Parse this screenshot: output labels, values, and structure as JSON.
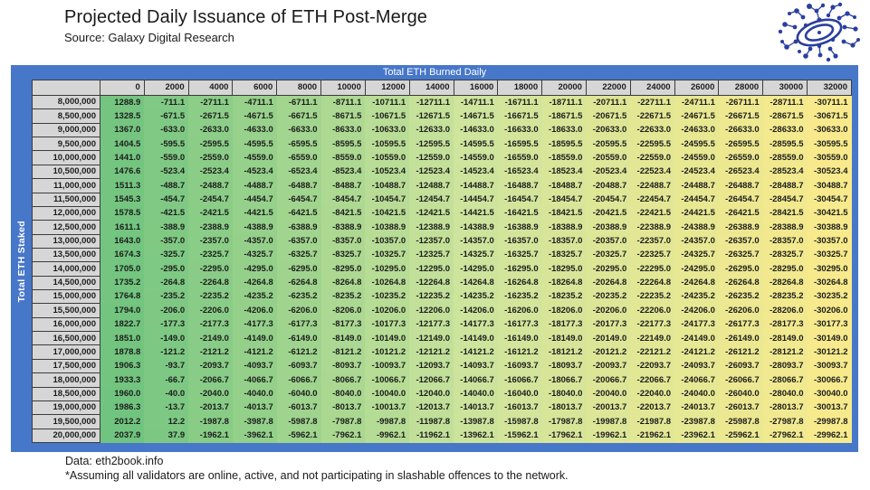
{
  "header": {
    "title": "Projected Daily Issuance of ETH Post-Merge",
    "subtitle": "Source: Galaxy Digital Research"
  },
  "logo": {
    "name": "galaxy-digital-network-logo",
    "color": "#2b3f9e"
  },
  "table": {
    "col_axis_label": "Total ETH Burned Daily",
    "row_axis_label": "Total ETH Staked",
    "col_headers": [
      "0",
      "2000",
      "4000",
      "6000",
      "8000",
      "10000",
      "12000",
      "14000",
      "16000",
      "18000",
      "20000",
      "22000",
      "24000",
      "26000",
      "28000",
      "30000",
      "32000"
    ],
    "row_headers": [
      "8,000,000",
      "8,500,000",
      "9,000,000",
      "9,500,000",
      "10,000,000",
      "10,500,000",
      "11,000,000",
      "11,500,000",
      "12,000,000",
      "12,500,000",
      "13,000,000",
      "13,500,000",
      "14,000,000",
      "14,500,000",
      "15,000,000",
      "15,500,000",
      "16,000,000",
      "16,500,000",
      "17,000,000",
      "17,500,000",
      "18,000,000",
      "18,500,000",
      "19,000,000",
      "19,500,000",
      "20,000,000"
    ]
  },
  "colors": {
    "frame_blue": "#4777c9",
    "header_gray": "#d6d6d6",
    "grid_border": "#3c3c3c",
    "text_dark": "#1c1c1c",
    "logo_blue": "#2b3f9e"
  },
  "chart_data": {
    "type": "heatmap",
    "title": "Projected Daily Issuance of ETH Post-Merge",
    "source": "Galaxy Digital Research",
    "xlabel": "Total ETH Burned Daily",
    "ylabel": "Total ETH Staked",
    "x": [
      0,
      2000,
      4000,
      6000,
      8000,
      10000,
      12000,
      14000,
      16000,
      18000,
      20000,
      22000,
      24000,
      26000,
      28000,
      30000,
      32000
    ],
    "y": [
      8000000,
      8500000,
      9000000,
      9500000,
      10000000,
      10500000,
      11000000,
      11500000,
      12000000,
      12500000,
      13000000,
      13500000,
      14000000,
      14500000,
      15000000,
      15500000,
      16000000,
      16500000,
      17000000,
      17500000,
      18000000,
      18500000,
      19000000,
      19500000,
      20000000
    ],
    "rows": [
      [
        1288.9,
        -711.1,
        -2711.1,
        -4711.1,
        -6711.1,
        -8711.1,
        -10711.1,
        -12711.1,
        -14711.1,
        -16711.1,
        -18711.1,
        -20711.1,
        -22711.1,
        -24711.1,
        -26711.1,
        -28711.1,
        -30711.1
      ],
      [
        1328.5,
        -671.5,
        -2671.5,
        -4671.5,
        -6671.5,
        -8671.5,
        -10671.5,
        -12671.5,
        -14671.5,
        -16671.5,
        -18671.5,
        -20671.5,
        -22671.5,
        -24671.5,
        -26671.5,
        -28671.5,
        -30671.5
      ],
      [
        1367.0,
        -633.0,
        -2633.0,
        -4633.0,
        -6633.0,
        -8633.0,
        -10633.0,
        -12633.0,
        -14633.0,
        -16633.0,
        -18633.0,
        -20633.0,
        -22633.0,
        -24633.0,
        -26633.0,
        -28633.0,
        -30633.0
      ],
      [
        1404.5,
        -595.5,
        -2595.5,
        -4595.5,
        -6595.5,
        -8595.5,
        -10595.5,
        -12595.5,
        -14595.5,
        -16595.5,
        -18595.5,
        -20595.5,
        -22595.5,
        -24595.5,
        -26595.5,
        -28595.5,
        -30595.5
      ],
      [
        1441.0,
        -559.0,
        -2559.0,
        -4559.0,
        -6559.0,
        -8559.0,
        -10559.0,
        -12559.0,
        -14559.0,
        -16559.0,
        -18559.0,
        -20559.0,
        -22559.0,
        -24559.0,
        -26559.0,
        -28559.0,
        -30559.0
      ],
      [
        1476.6,
        -523.4,
        -2523.4,
        -4523.4,
        -6523.4,
        -8523.4,
        -10523.4,
        -12523.4,
        -14523.4,
        -16523.4,
        -18523.4,
        -20523.4,
        -22523.4,
        -24523.4,
        -26523.4,
        -28523.4,
        -30523.4
      ],
      [
        1511.3,
        -488.7,
        -2488.7,
        -4488.7,
        -6488.7,
        -8488.7,
        -10488.7,
        -12488.7,
        -14488.7,
        -16488.7,
        -18488.7,
        -20488.7,
        -22488.7,
        -24488.7,
        -26488.7,
        -28488.7,
        -30488.7
      ],
      [
        1545.3,
        -454.7,
        -2454.7,
        -4454.7,
        -6454.7,
        -8454.7,
        -10454.7,
        -12454.7,
        -14454.7,
        -16454.7,
        -18454.7,
        -20454.7,
        -22454.7,
        -24454.7,
        -26454.7,
        -28454.7,
        -30454.7
      ],
      [
        1578.5,
        -421.5,
        -2421.5,
        -4421.5,
        -6421.5,
        -8421.5,
        -10421.5,
        -12421.5,
        -14421.5,
        -16421.5,
        -18421.5,
        -20421.5,
        -22421.5,
        -24421.5,
        -26421.5,
        -28421.5,
        -30421.5
      ],
      [
        1611.1,
        -388.9,
        -2388.9,
        -4388.9,
        -6388.9,
        -8388.9,
        -10388.9,
        -12388.9,
        -14388.9,
        -16388.9,
        -18388.9,
        -20388.9,
        -22388.9,
        -24388.9,
        -26388.9,
        -28388.9,
        -30388.9
      ],
      [
        1643.0,
        -357.0,
        -2357.0,
        -4357.0,
        -6357.0,
        -8357.0,
        -10357.0,
        -12357.0,
        -14357.0,
        -16357.0,
        -18357.0,
        -20357.0,
        -22357.0,
        -24357.0,
        -26357.0,
        -28357.0,
        -30357.0
      ],
      [
        1674.3,
        -325.7,
        -2325.7,
        -4325.7,
        -6325.7,
        -8325.7,
        -10325.7,
        -12325.7,
        -14325.7,
        -16325.7,
        -18325.7,
        -20325.7,
        -22325.7,
        -24325.7,
        -26325.7,
        -28325.7,
        -30325.7
      ],
      [
        1705.0,
        -295.0,
        -2295.0,
        -4295.0,
        -6295.0,
        -8295.0,
        -10295.0,
        -12295.0,
        -14295.0,
        -16295.0,
        -18295.0,
        -20295.0,
        -22295.0,
        -24295.0,
        -26295.0,
        -28295.0,
        -30295.0
      ],
      [
        1735.2,
        -264.8,
        -2264.8,
        -4264.8,
        -6264.8,
        -8264.8,
        -10264.8,
        -12264.8,
        -14264.8,
        -16264.8,
        -18264.8,
        -20264.8,
        -22264.8,
        -24264.8,
        -26264.8,
        -28264.8,
        -30264.8
      ],
      [
        1764.8,
        -235.2,
        -2235.2,
        -4235.2,
        -6235.2,
        -8235.2,
        -10235.2,
        -12235.2,
        -14235.2,
        -16235.2,
        -18235.2,
        -20235.2,
        -22235.2,
        -24235.2,
        -26235.2,
        -28235.2,
        -30235.2
      ],
      [
        1794.0,
        -206.0,
        -2206.0,
        -4206.0,
        -6206.0,
        -8206.0,
        -10206.0,
        -12206.0,
        -14206.0,
        -16206.0,
        -18206.0,
        -20206.0,
        -22206.0,
        -24206.0,
        -26206.0,
        -28206.0,
        -30206.0
      ],
      [
        1822.7,
        -177.3,
        -2177.3,
        -4177.3,
        -6177.3,
        -8177.3,
        -10177.3,
        -12177.3,
        -14177.3,
        -16177.3,
        -18177.3,
        -20177.3,
        -22177.3,
        -24177.3,
        -26177.3,
        -28177.3,
        -30177.3
      ],
      [
        1851.0,
        -149.0,
        -2149.0,
        -4149.0,
        -6149.0,
        -8149.0,
        -10149.0,
        -12149.0,
        -14149.0,
        -16149.0,
        -18149.0,
        -20149.0,
        -22149.0,
        -24149.0,
        -26149.0,
        -28149.0,
        -30149.0
      ],
      [
        1878.8,
        -121.2,
        -2121.2,
        -4121.2,
        -6121.2,
        -8121.2,
        -10121.2,
        -12121.2,
        -14121.2,
        -16121.2,
        -18121.2,
        -20121.2,
        -22121.2,
        -24121.2,
        -26121.2,
        -28121.2,
        -30121.2
      ],
      [
        1906.3,
        -93.7,
        -2093.7,
        -4093.7,
        -6093.7,
        -8093.7,
        -10093.7,
        -12093.7,
        -14093.7,
        -16093.7,
        -18093.7,
        -20093.7,
        -22093.7,
        -24093.7,
        -26093.7,
        -28093.7,
        -30093.7
      ],
      [
        1933.3,
        -66.7,
        -2066.7,
        -4066.7,
        -6066.7,
        -8066.7,
        -10066.7,
        -12066.7,
        -14066.7,
        -16066.7,
        -18066.7,
        -20066.7,
        -22066.7,
        -24066.7,
        -26066.7,
        -28066.7,
        -30066.7
      ],
      [
        1960.0,
        -40.0,
        -2040.0,
        -4040.0,
        -6040.0,
        -8040.0,
        -10040.0,
        -12040.0,
        -14040.0,
        -16040.0,
        -18040.0,
        -20040.0,
        -22040.0,
        -24040.0,
        -26040.0,
        -28040.0,
        -30040.0
      ],
      [
        1986.3,
        -13.7,
        -2013.7,
        -4013.7,
        -6013.7,
        -8013.7,
        -10013.7,
        -12013.7,
        -14013.7,
        -16013.7,
        -18013.7,
        -20013.7,
        -22013.7,
        -24013.7,
        -26013.7,
        -28013.7,
        -30013.7
      ],
      [
        2012.2,
        12.2,
        -1987.8,
        -3987.8,
        -5987.8,
        -7987.8,
        -9987.8,
        -11987.8,
        -13987.8,
        -15987.8,
        -17987.8,
        -19987.8,
        -21987.8,
        -23987.8,
        -25987.8,
        -27987.8,
        -29987.8
      ],
      [
        2037.9,
        37.9,
        -1962.1,
        -3962.1,
        -5962.1,
        -7962.1,
        -9962.1,
        -11962.1,
        -13962.1,
        -15962.1,
        -17962.1,
        -19962.1,
        -21962.1,
        -23962.1,
        -25962.1,
        -27962.1,
        -29962.1
      ]
    ],
    "value_format": "1-decimal",
    "color_scale": {
      "min": -30711.1,
      "max": 2037.9,
      "stops": [
        "#f8ea8c",
        "#cee49d",
        "#71c47f"
      ],
      "legend": "green = high net issuance, yellow = low (deflationary)"
    },
    "grid": false,
    "legend_position": "none"
  },
  "footer": {
    "line1": "Data: eth2book.info",
    "line2": "*Assuming all validators are online, active, and not participating in slashable offences to the network."
  }
}
